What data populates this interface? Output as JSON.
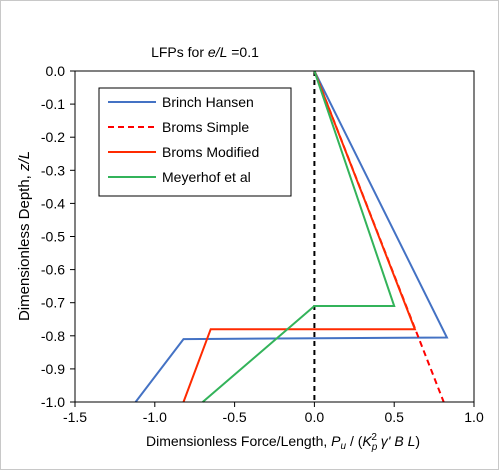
{
  "chart_data": {
    "type": "line",
    "title_prefix": "LFPs for ",
    "title_italic": "e/L",
    "title_suffix": " =0.1",
    "ylabel_prefix": "Dimensionless Depth, ",
    "ylabel_italic": "z/L",
    "xlabel_prefix": "Dimensionless Force/Length, ",
    "xlabel_italic_1": "P",
    "xlabel_sub_1": "u",
    "xlabel_mid": " / (",
    "xlabel_italic_2": "K",
    "xlabel_sub_2": "p",
    "xlabel_sup_2": "2",
    "xlabel_italic_3": " γ' B L",
    "xlabel_suffix": ")",
    "xlim": [
      -1.5,
      1.0
    ],
    "ylim": [
      -1.0,
      0.0
    ],
    "x_ticks": [
      "-1.5",
      "-1.0",
      "-0.5",
      "0.0",
      "0.5",
      "1.0"
    ],
    "y_ticks": [
      "0.0",
      "-0.1",
      "-0.2",
      "-0.3",
      "-0.4",
      "-0.5",
      "-0.6",
      "-0.7",
      "-0.8",
      "-0.9",
      "-1.0"
    ],
    "grid": false,
    "legend_position": "top-left",
    "zero_line": {
      "x": 0.0,
      "style": "dashed",
      "color": "#000000"
    },
    "series": [
      {
        "name": "Brinch Hansen",
        "color": "#4472c4",
        "dash": "solid",
        "points": [
          [
            0.0,
            0.0
          ],
          [
            0.83,
            -0.805
          ],
          [
            -0.82,
            -0.81
          ],
          [
            -1.12,
            -1.0
          ]
        ]
      },
      {
        "name": "Broms Simple",
        "color": "#ff0000",
        "dash": "dashed",
        "points": [
          [
            0.0,
            0.0
          ],
          [
            0.81,
            -1.0
          ]
        ]
      },
      {
        "name": "Broms Modified",
        "color": "#ff2a00",
        "dash": "solid",
        "points": [
          [
            0.0,
            0.0
          ],
          [
            0.63,
            -0.78
          ],
          [
            -0.65,
            -0.78
          ],
          [
            -0.82,
            -1.0
          ]
        ]
      },
      {
        "name": "Meyerhof et al",
        "color": "#33b35a",
        "dash": "solid",
        "points": [
          [
            0.0,
            0.0
          ],
          [
            0.5,
            -0.71
          ],
          [
            0.0,
            -0.71
          ],
          [
            -0.7,
            -1.0
          ]
        ]
      }
    ]
  }
}
